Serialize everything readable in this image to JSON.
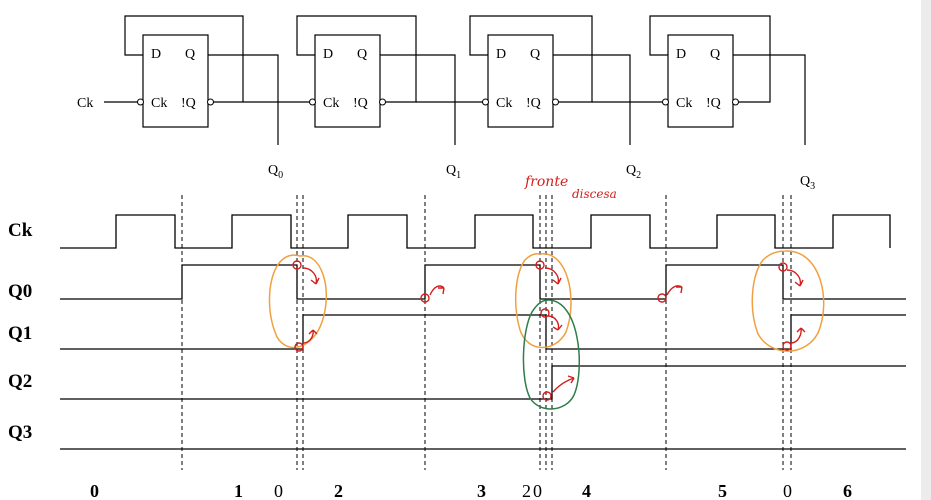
{
  "circuit": {
    "clock_input": "Ck",
    "flipflops": [
      {
        "d": "D",
        "q": "Q",
        "ck": "Ck",
        "nq": "!Q",
        "out": "Q",
        "sub": "0"
      },
      {
        "d": "D",
        "q": "Q",
        "ck": "Ck",
        "nq": "!Q",
        "out": "Q",
        "sub": "1"
      },
      {
        "d": "D",
        "q": "Q",
        "ck": "Ck",
        "nq": "!Q",
        "out": "Q",
        "sub": "2"
      },
      {
        "d": "D",
        "q": "Q",
        "ck": "Ck",
        "nq": "!Q",
        "out": "Q",
        "sub": "3"
      }
    ]
  },
  "timing": {
    "signals": [
      "Ck",
      "Q0",
      "Q1",
      "Q2",
      "Q3"
    ],
    "states": [
      {
        "label": "0",
        "bold": true
      },
      {
        "label": "1",
        "bold": true
      },
      {
        "label": "0",
        "bold": false
      },
      {
        "label": "2",
        "bold": true
      },
      {
        "label": "3",
        "bold": true
      },
      {
        "label": "2",
        "bold": false
      },
      {
        "label": "0",
        "bold": false
      },
      {
        "label": "4",
        "bold": true
      },
      {
        "label": "5",
        "bold": true
      },
      {
        "label": "0",
        "bold": false
      },
      {
        "label": "6",
        "bold": true
      }
    ]
  },
  "annotations": {
    "line1": "fronte",
    "line2": "discesa",
    "colors": {
      "arrows": "#d21e1e",
      "circles_orange": "#f0a040",
      "circle_green": "#2e7d4a"
    }
  }
}
